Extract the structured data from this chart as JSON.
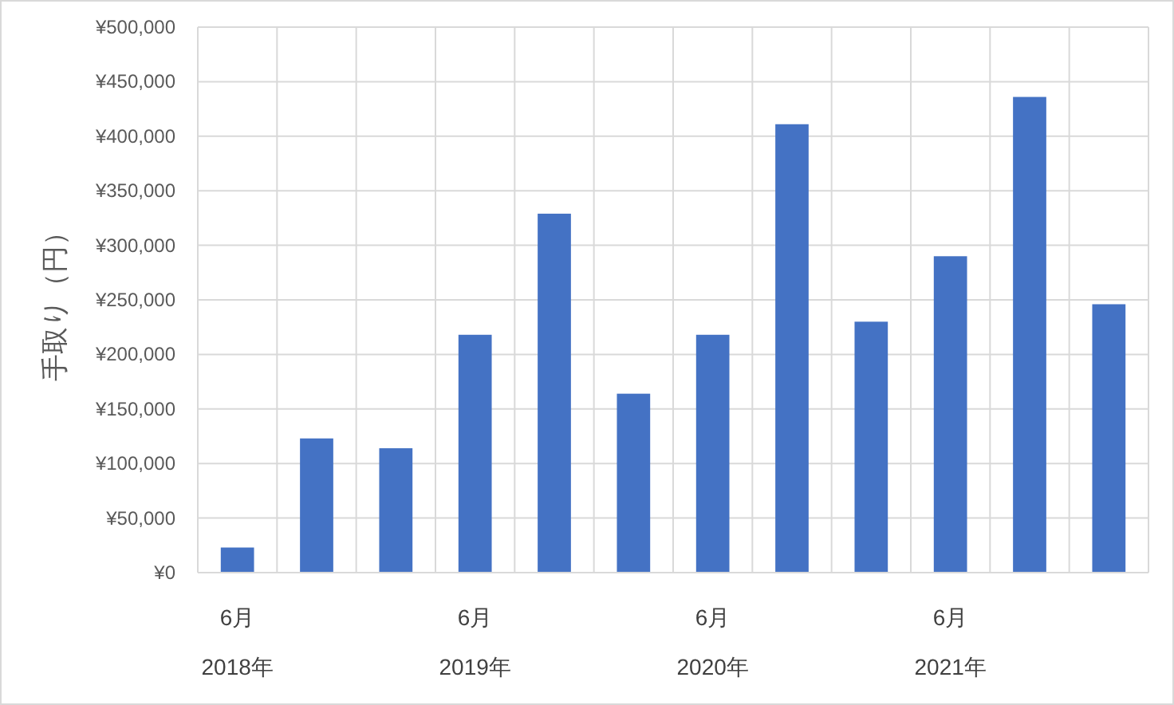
{
  "chart_data": {
    "type": "bar",
    "ylabel": "手取り（円）",
    "categories": [
      "6月\n2018年",
      null,
      null,
      "6月\n2019年",
      null,
      null,
      "6月\n2020年",
      null,
      null,
      "6月\n2021年",
      null,
      null
    ],
    "values": [
      23000,
      123000,
      114000,
      218000,
      329000,
      164000,
      218000,
      411000,
      230000,
      290000,
      436000,
      246000
    ],
    "color": "#4472c4",
    "ylim": [
      0,
      500000
    ],
    "yticks": [
      {
        "value": 0,
        "label": "¥0"
      },
      {
        "value": 50000,
        "label": "¥50,000"
      },
      {
        "value": 100000,
        "label": "¥100,000"
      },
      {
        "value": 150000,
        "label": "¥150,000"
      },
      {
        "value": 200000,
        "label": "¥200,000"
      },
      {
        "value": 250000,
        "label": "¥250,000"
      },
      {
        "value": 300000,
        "label": "¥300,000"
      },
      {
        "value": 350000,
        "label": "¥350,000"
      },
      {
        "value": 400000,
        "label": "¥400,000"
      },
      {
        "value": 450000,
        "label": "¥450,000"
      },
      {
        "value": 500000,
        "label": "¥500,000"
      }
    ],
    "grid": true
  }
}
